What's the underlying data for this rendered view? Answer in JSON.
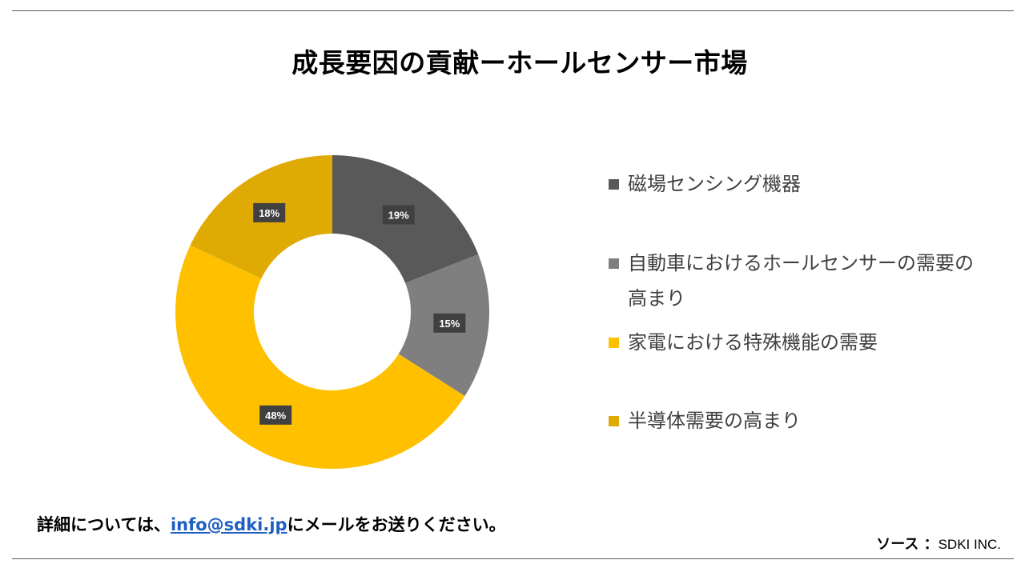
{
  "contact": {
    "prefix": "詳細については、",
    "email": "info@sdki.jp",
    "suffix": "にメールをお送りください。"
  },
  "source": {
    "label": "ソース ：",
    "value": "SDKI INC."
  },
  "chart_data": {
    "type": "pie",
    "variant": "donut",
    "title": "成長要因の貢献ーホールセンサー市場",
    "legend_position": "right",
    "categories": [
      "磁場センシング機器",
      "自動車におけるホールセンサーの需要の高まり",
      "家電における特殊機能の需要",
      "半導体需要の高まり"
    ],
    "values": [
      19,
      15,
      48,
      18
    ],
    "value_labels": [
      "19%",
      "15%",
      "48%",
      "18%"
    ],
    "colors": [
      "#595959",
      "#7f7f7f",
      "#ffc000",
      "#e0aa04"
    ]
  }
}
